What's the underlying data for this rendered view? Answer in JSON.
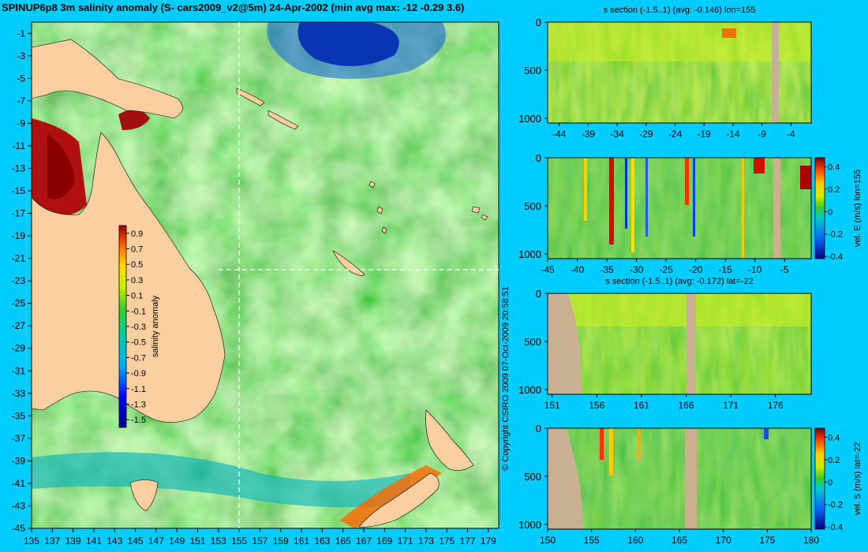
{
  "title": "SPINUP6p8 3m salinity anomaly (S- cars2009_v2@5m) 24-Apr-2002 (min avg max: -12 -0.29 3.6)",
  "copyright": "© Copyright CSIRO 2009   07-Oct-2009 20:58:51",
  "colors": {
    "background": "#00ccff",
    "land": "#fbcfa0",
    "section_land": "#c8b090"
  },
  "chart_data": [
    {
      "id": "map",
      "type": "heatmap",
      "title": "SPINUP6p8 3m salinity anomaly (S- cars2009_v2@5m) 24-Apr-2002 (min avg max: -12 -0.29 3.6)",
      "xlim": [
        135,
        180
      ],
      "ylim": [
        -45,
        0
      ],
      "xticks": [
        135,
        137,
        139,
        141,
        143,
        145,
        147,
        149,
        151,
        153,
        155,
        157,
        159,
        161,
        163,
        165,
        167,
        169,
        171,
        173,
        175,
        177,
        179
      ],
      "yticks": [
        -1,
        -3,
        -5,
        -7,
        -9,
        -11,
        -13,
        -15,
        -17,
        -19,
        -21,
        -23,
        -25,
        -27,
        -29,
        -31,
        -33,
        -35,
        -37,
        -39,
        -41,
        -43,
        -45
      ],
      "section_lon": 155,
      "section_lat": -22,
      "colorbar": {
        "label": "salinity anomaly",
        "range": [
          -1.6,
          1.0
        ],
        "ticks": [
          0.9,
          0.7,
          0.5,
          0.3,
          0.1,
          -0.1,
          -0.3,
          -0.5,
          -0.7,
          -0.9,
          -1.1,
          -1.3,
          -1.5
        ]
      }
    },
    {
      "id": "p1",
      "type": "heatmap",
      "title": "s section (-1.5..1) (avg: -0.146) lon=155",
      "xlim": [
        -46,
        -0.5
      ],
      "ylim": [
        1050,
        0
      ],
      "xticks": [
        -44,
        -39,
        -34,
        -29,
        -24,
        -19,
        -14,
        -9,
        -4
      ],
      "yticks": [
        0,
        500,
        1000
      ]
    },
    {
      "id": "p2",
      "type": "heatmap",
      "title": "",
      "xlim": [
        -45,
        -0.5
      ],
      "ylim": [
        1050,
        0
      ],
      "xticks": [
        -45,
        -40,
        -35,
        -30,
        -25,
        -20,
        -15,
        -10,
        -5
      ],
      "yticks": [
        0,
        500,
        1000
      ],
      "colorbar": {
        "label": "vel. E (m/s) lon=155",
        "range": [
          -0.42,
          0.48
        ],
        "ticks": [
          0.4,
          0.2,
          0,
          -0.2,
          -0.4
        ]
      }
    },
    {
      "id": "p3",
      "type": "heatmap",
      "title": "s section (-1.5..1) (avg: -0.172) lat=-22",
      "xlim": [
        150.5,
        180
      ],
      "ylim": [
        1050,
        0
      ],
      "xticks": [
        151,
        156,
        161,
        166,
        171,
        176
      ],
      "yticks": [
        0,
        500,
        1000
      ]
    },
    {
      "id": "p4",
      "type": "heatmap",
      "title": "",
      "xlim": [
        150,
        180
      ],
      "ylim": [
        1050,
        0
      ],
      "xticks": [
        150,
        155,
        160,
        165,
        170,
        175,
        180
      ],
      "yticks": [
        0,
        500,
        1000
      ],
      "colorbar": {
        "label": "vel. S (m/s) lat=-22",
        "range": [
          -0.42,
          0.48
        ],
        "ticks": [
          0.4,
          0.2,
          0,
          -0.2,
          -0.4
        ]
      }
    }
  ]
}
